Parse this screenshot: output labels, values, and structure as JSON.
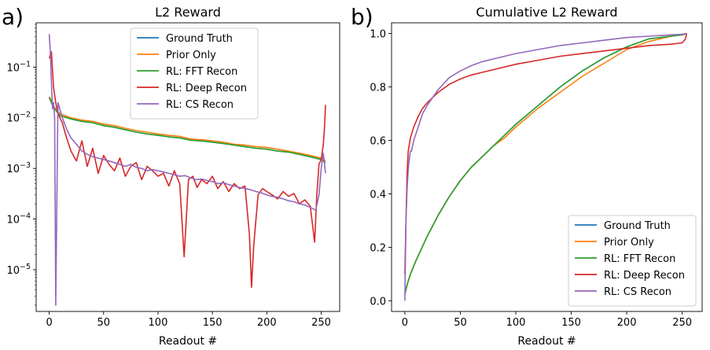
{
  "chart_data": [
    {
      "type": "line",
      "panel_label": "a)",
      "title": "L2 Reward",
      "xlabel": "Readout #",
      "ylabel": "",
      "yscale": "log",
      "xlim": [
        -12,
        267
      ],
      "ylim": [
        1.5e-06,
        0.75
      ],
      "xticks": [
        0,
        50,
        100,
        150,
        200,
        250
      ],
      "xtick_labels": [
        "0",
        "50",
        "100",
        "150",
        "200",
        "250"
      ],
      "yticks": [
        1e-05,
        0.0001,
        0.001,
        0.01,
        0.1
      ],
      "ytick_labels": [
        "10^-5",
        "10^-4",
        "10^-3",
        "10^-2",
        "10^-1"
      ],
      "legend_position": "upper center",
      "series": [
        {
          "name": "Ground Truth",
          "color": "#1f77b4",
          "x": [
            0,
            2,
            4,
            6,
            10,
            20,
            30,
            40,
            50,
            60,
            70,
            80,
            90,
            100,
            110,
            120,
            130,
            140,
            150,
            160,
            170,
            180,
            190,
            200,
            210,
            220,
            230,
            240,
            250,
            252,
            254
          ],
          "y": [
            0.025,
            0.02,
            0.016,
            0.014,
            0.011,
            0.0095,
            0.0085,
            0.008,
            0.007,
            0.0065,
            0.0058,
            0.0052,
            0.0048,
            0.0045,
            0.0042,
            0.004,
            0.0036,
            0.0035,
            0.0033,
            0.0031,
            0.0029,
            0.0027,
            0.0025,
            0.0024,
            0.0022,
            0.0021,
            0.0019,
            0.0017,
            0.0015,
            0.0014,
            0.0013
          ]
        },
        {
          "name": "Prior Only",
          "color": "#ff7f0e",
          "x": [
            0,
            2,
            4,
            6,
            10,
            20,
            30,
            40,
            50,
            60,
            70,
            80,
            90,
            100,
            110,
            120,
            130,
            140,
            150,
            160,
            170,
            180,
            190,
            200,
            210,
            220,
            230,
            240,
            250,
            252,
            254
          ],
          "y": [
            0.026,
            0.022,
            0.017,
            0.015,
            0.012,
            0.01,
            0.009,
            0.0085,
            0.0075,
            0.007,
            0.0062,
            0.0056,
            0.0052,
            0.0048,
            0.0045,
            0.0043,
            0.0038,
            0.0037,
            0.0035,
            0.0033,
            0.003,
            0.0029,
            0.0027,
            0.0026,
            0.0024,
            0.0022,
            0.002,
            0.0018,
            0.0016,
            0.0015,
            0.0014
          ]
        },
        {
          "name": "RL: FFT Recon",
          "color": "#2ca02c",
          "x": [
            0,
            2,
            4,
            6,
            10,
            20,
            30,
            40,
            50,
            60,
            70,
            80,
            90,
            100,
            110,
            120,
            130,
            140,
            150,
            160,
            170,
            180,
            190,
            200,
            210,
            220,
            230,
            240,
            250,
            252,
            254
          ],
          "y": [
            0.025,
            0.02,
            0.016,
            0.014,
            0.011,
            0.0095,
            0.0085,
            0.008,
            0.007,
            0.0065,
            0.0058,
            0.0052,
            0.0048,
            0.0045,
            0.0042,
            0.004,
            0.0036,
            0.0035,
            0.0033,
            0.0031,
            0.0029,
            0.0027,
            0.0025,
            0.0024,
            0.0022,
            0.0021,
            0.0019,
            0.0017,
            0.0015,
            0.0014,
            0.0013
          ]
        },
        {
          "name": "RL: Deep Recon",
          "color": "#d62728",
          "x": [
            0,
            2,
            4,
            6,
            8,
            12,
            16,
            20,
            25,
            30,
            35,
            40,
            45,
            50,
            55,
            60,
            65,
            70,
            75,
            80,
            85,
            90,
            95,
            100,
            105,
            110,
            115,
            120,
            124,
            128,
            132,
            136,
            140,
            145,
            150,
            155,
            160,
            165,
            170,
            175,
            180,
            184,
            186,
            188,
            192,
            196,
            200,
            205,
            210,
            215,
            220,
            225,
            230,
            235,
            240,
            244,
            246,
            248,
            250,
            252,
            253,
            254
          ],
          "y": [
            0.15,
            0.2,
            0.04,
            0.02,
            0.012,
            0.008,
            0.004,
            0.0022,
            0.0014,
            0.0035,
            0.0011,
            0.0025,
            0.0008,
            0.0018,
            0.0012,
            0.0009,
            0.0016,
            0.0007,
            0.0011,
            0.0013,
            0.0006,
            0.0011,
            0.0009,
            0.0007,
            0.0008,
            0.00045,
            0.0009,
            0.0005,
            1.8e-05,
            0.0006,
            0.0007,
            0.00042,
            0.0006,
            0.0005,
            0.0007,
            0.0004,
            0.00055,
            0.00035,
            0.0005,
            0.0004,
            0.00045,
            5e-05,
            4.5e-06,
            3e-05,
            0.0003,
            0.0004,
            0.00035,
            0.0003,
            0.00025,
            0.00035,
            0.00028,
            0.00032,
            0.0002,
            0.00024,
            0.00018,
            3.5e-05,
            0.0003,
            0.0012,
            0.0015,
            0.003,
            0.006,
            0.018
          ]
        },
        {
          "name": "RL: CS Recon",
          "color": "#9467bd",
          "x": [
            0,
            1,
            2,
            3,
            4,
            5,
            6,
            8,
            12,
            16,
            20,
            25,
            30,
            35,
            40,
            45,
            50,
            55,
            60,
            65,
            70,
            75,
            80,
            85,
            90,
            95,
            100,
            105,
            110,
            115,
            120,
            125,
            130,
            135,
            140,
            145,
            150,
            155,
            160,
            165,
            170,
            175,
            180,
            185,
            190,
            195,
            200,
            205,
            210,
            215,
            220,
            225,
            230,
            235,
            240,
            245,
            248,
            250,
            252,
            254
          ],
          "y": [
            0.45,
            0.2,
            0.05,
            0.015,
            0.02,
            0.01,
            2e-06,
            0.02,
            0.01,
            0.006,
            0.004,
            0.003,
            0.0022,
            0.0019,
            0.0017,
            0.0016,
            0.0015,
            0.0014,
            0.0013,
            0.0012,
            0.0011,
            0.0012,
            0.00105,
            0.001,
            0.0009,
            0.00095,
            0.0009,
            0.00085,
            0.0008,
            0.00075,
            0.0007,
            0.00072,
            0.00065,
            0.0006,
            0.00062,
            0.00058,
            0.00055,
            0.0005,
            0.00052,
            0.00048,
            0.00045,
            0.00042,
            0.0004,
            0.00038,
            0.00035,
            0.00033,
            0.0003,
            0.00028,
            0.00027,
            0.00025,
            0.00023,
            0.00022,
            0.0002,
            0.00019,
            0.00017,
            0.00015,
            0.0003,
            0.001,
            0.002,
            0.0008
          ]
        }
      ]
    },
    {
      "type": "line",
      "panel_label": "b)",
      "title": "Cumulative L2 Reward",
      "xlabel": "Readout #",
      "ylabel": "",
      "yscale": "linear",
      "xlim": [
        -12,
        268
      ],
      "ylim": [
        -0.04,
        1.04
      ],
      "xticks": [
        0,
        50,
        100,
        150,
        200,
        250
      ],
      "xtick_labels": [
        "0",
        "50",
        "100",
        "150",
        "200",
        "250"
      ],
      "yticks": [
        0.0,
        0.2,
        0.4,
        0.6,
        0.8,
        1.0
      ],
      "ytick_labels": [
        "0.0",
        "0.2",
        "0.4",
        "0.6",
        "0.8",
        "1.0"
      ],
      "legend_position": "lower right",
      "series": [
        {
          "name": "Ground Truth",
          "color": "#1f77b4",
          "x": [
            0,
            2,
            5,
            10,
            20,
            30,
            40,
            50,
            60,
            70,
            80,
            90,
            100,
            120,
            140,
            160,
            180,
            200,
            220,
            240,
            250,
            254
          ],
          "y": [
            0.025,
            0.06,
            0.1,
            0.15,
            0.24,
            0.32,
            0.39,
            0.45,
            0.5,
            0.54,
            0.58,
            0.62,
            0.66,
            0.73,
            0.8,
            0.86,
            0.91,
            0.95,
            0.98,
            0.99,
            0.995,
            1.0
          ]
        },
        {
          "name": "Prior Only",
          "color": "#ff7f0e",
          "x": [
            0,
            2,
            5,
            10,
            20,
            30,
            40,
            50,
            60,
            70,
            80,
            90,
            100,
            120,
            140,
            160,
            180,
            200,
            220,
            240,
            250,
            254
          ],
          "y": [
            0.025,
            0.06,
            0.1,
            0.15,
            0.24,
            0.32,
            0.39,
            0.45,
            0.5,
            0.54,
            0.58,
            0.61,
            0.65,
            0.72,
            0.78,
            0.84,
            0.89,
            0.94,
            0.97,
            0.99,
            0.995,
            1.0
          ]
        },
        {
          "name": "RL: FFT Recon",
          "color": "#2ca02c",
          "x": [
            0,
            2,
            5,
            10,
            20,
            30,
            40,
            50,
            60,
            70,
            80,
            90,
            100,
            120,
            140,
            160,
            180,
            200,
            220,
            240,
            250,
            254
          ],
          "y": [
            0.025,
            0.06,
            0.1,
            0.15,
            0.24,
            0.32,
            0.39,
            0.45,
            0.5,
            0.54,
            0.58,
            0.62,
            0.66,
            0.73,
            0.8,
            0.86,
            0.91,
            0.95,
            0.98,
            0.99,
            0.995,
            1.0
          ]
        },
        {
          "name": "RL: Deep Recon",
          "color": "#d62728",
          "x": [
            0,
            1,
            2,
            3,
            5,
            8,
            12,
            16,
            20,
            25,
            30,
            40,
            50,
            60,
            70,
            80,
            90,
            100,
            120,
            140,
            160,
            180,
            200,
            220,
            240,
            250,
            253,
            254
          ],
          "y": [
            0.1,
            0.3,
            0.48,
            0.56,
            0.61,
            0.65,
            0.69,
            0.72,
            0.74,
            0.76,
            0.78,
            0.81,
            0.83,
            0.845,
            0.855,
            0.865,
            0.875,
            0.885,
            0.9,
            0.915,
            0.925,
            0.935,
            0.945,
            0.955,
            0.96,
            0.965,
            0.98,
            1.0
          ]
        },
        {
          "name": "RL: CS Recon",
          "color": "#9467bd",
          "x": [
            0,
            1,
            2,
            3,
            4,
            5,
            6,
            8,
            12,
            16,
            20,
            25,
            30,
            40,
            50,
            60,
            70,
            80,
            90,
            100,
            120,
            140,
            160,
            180,
            200,
            220,
            240,
            250,
            254
          ],
          "y": [
            0.0,
            0.3,
            0.42,
            0.49,
            0.53,
            0.56,
            0.56,
            0.6,
            0.65,
            0.7,
            0.73,
            0.76,
            0.79,
            0.835,
            0.86,
            0.88,
            0.895,
            0.905,
            0.915,
            0.925,
            0.94,
            0.955,
            0.965,
            0.975,
            0.985,
            0.99,
            0.995,
            0.997,
            1.0
          ]
        }
      ]
    }
  ]
}
